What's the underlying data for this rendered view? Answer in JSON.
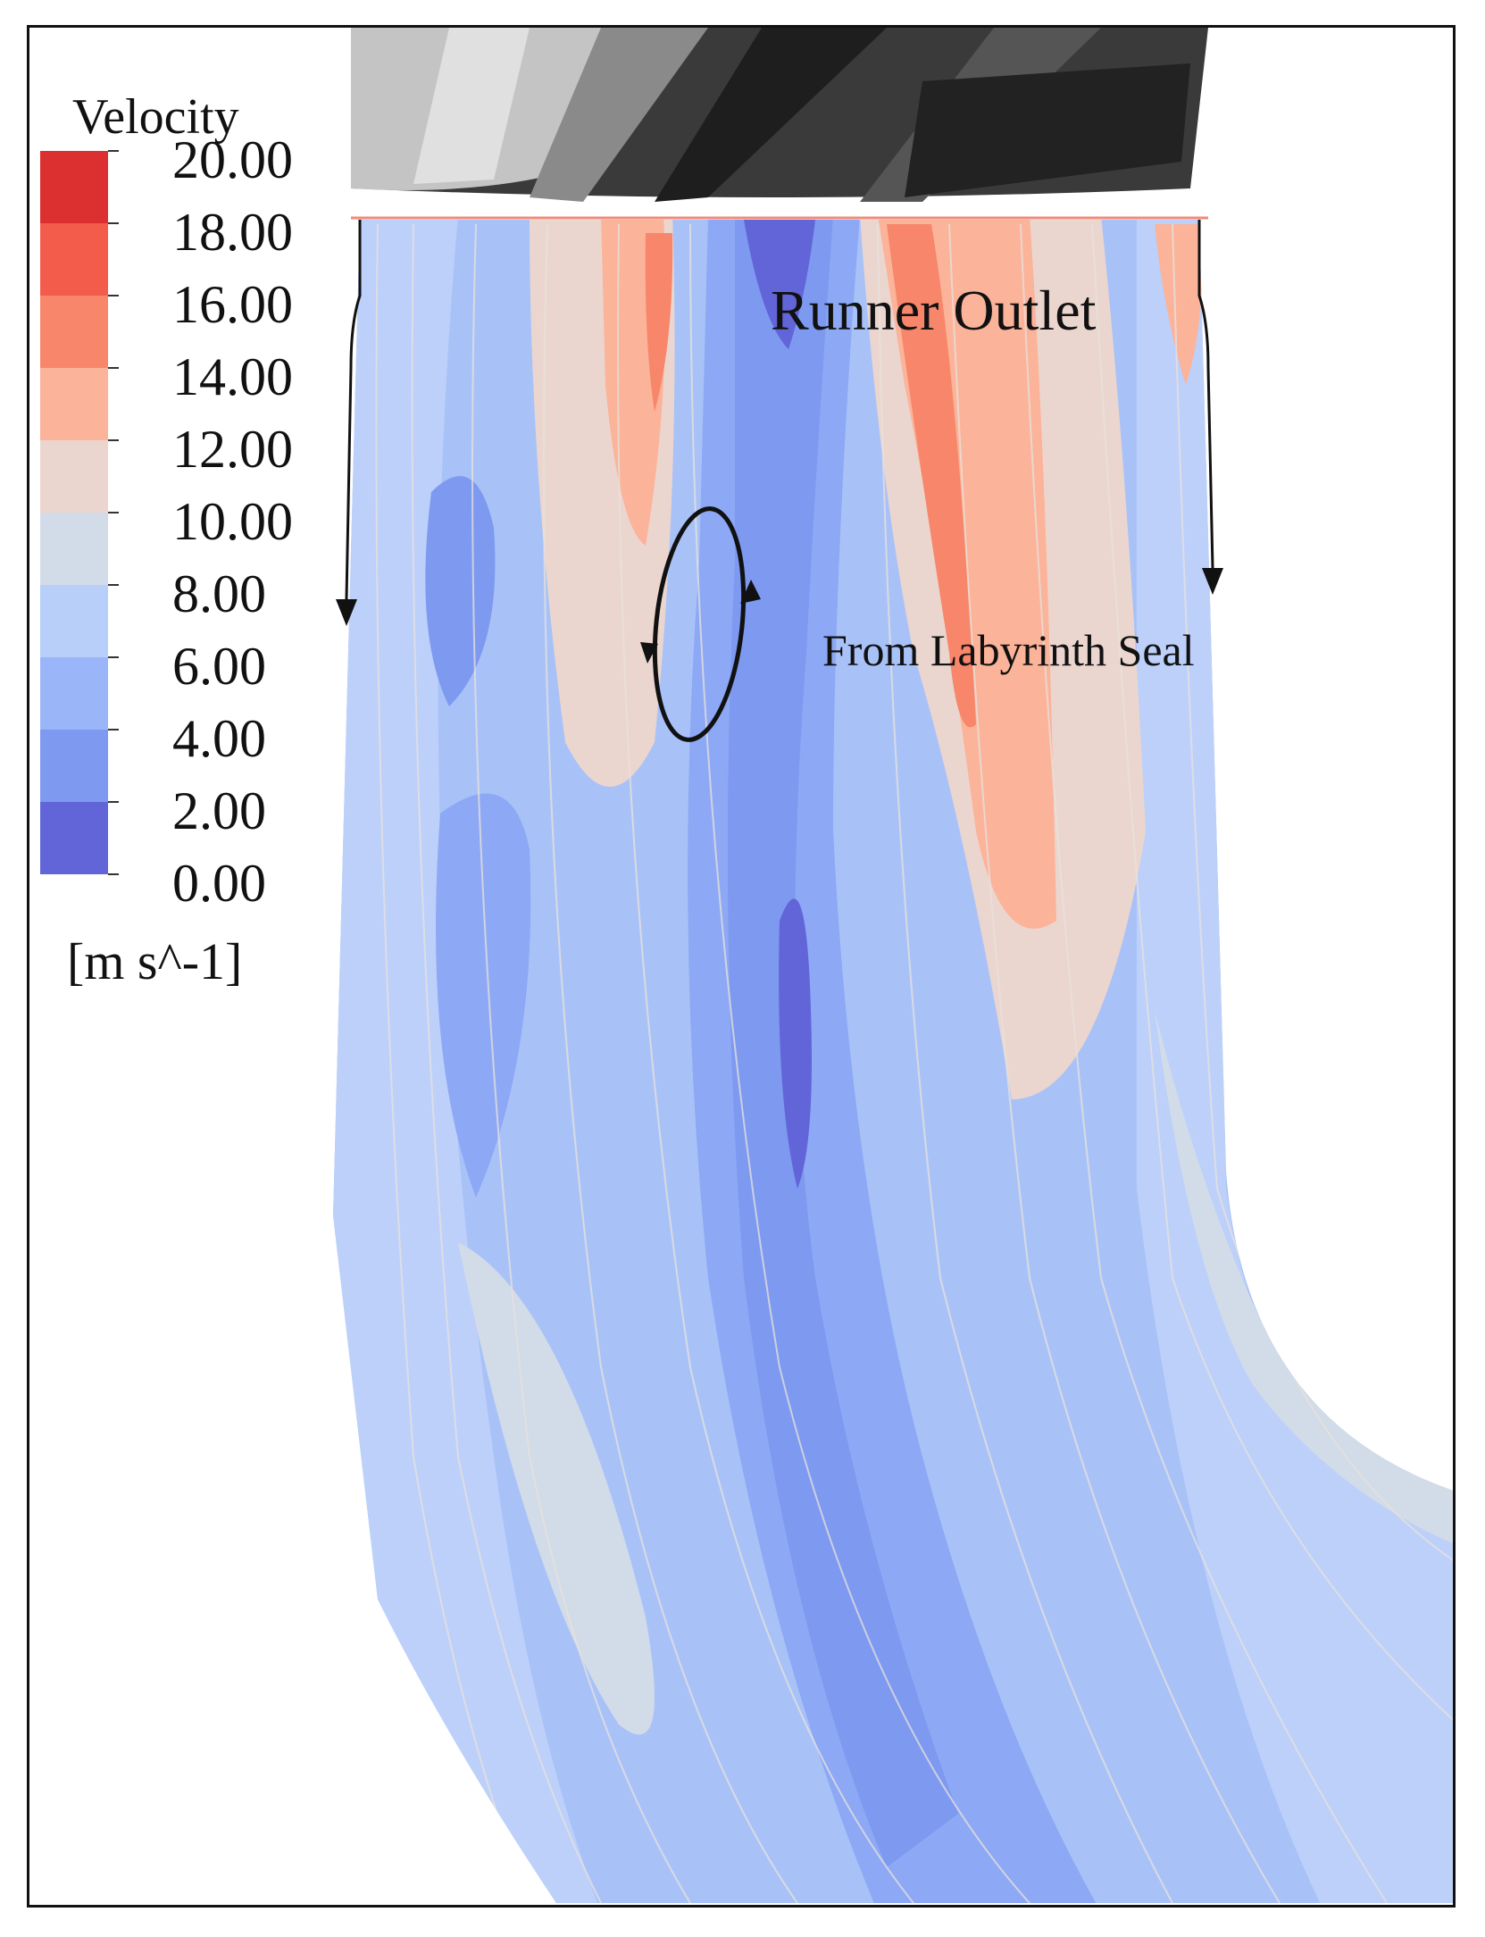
{
  "legend": {
    "title": "Velocity",
    "unit": "[m s^-1]",
    "ticks": [
      "20.00",
      "18.00",
      "16.00",
      "14.00",
      "12.00",
      "10.00",
      "8.00",
      "6.00",
      "4.00",
      "2.00",
      "0.00"
    ],
    "bands": [
      "#dc2f2f",
      "#f35c4a",
      "#f7866a",
      "#fbb39a",
      "#ebd6cf",
      "#d2dbe8",
      "#b8cffa",
      "#9ab6f8",
      "#7d99f0",
      "#6265d8"
    ]
  },
  "annotations": {
    "runner_outlet": "Runner Outlet",
    "labyrinth_seal": "From Labyrinth Seal"
  },
  "colors": {
    "runner_dark": "#2a2a2a",
    "runner_light": "#c8c8c8",
    "streamline": "#e8e2dc"
  }
}
